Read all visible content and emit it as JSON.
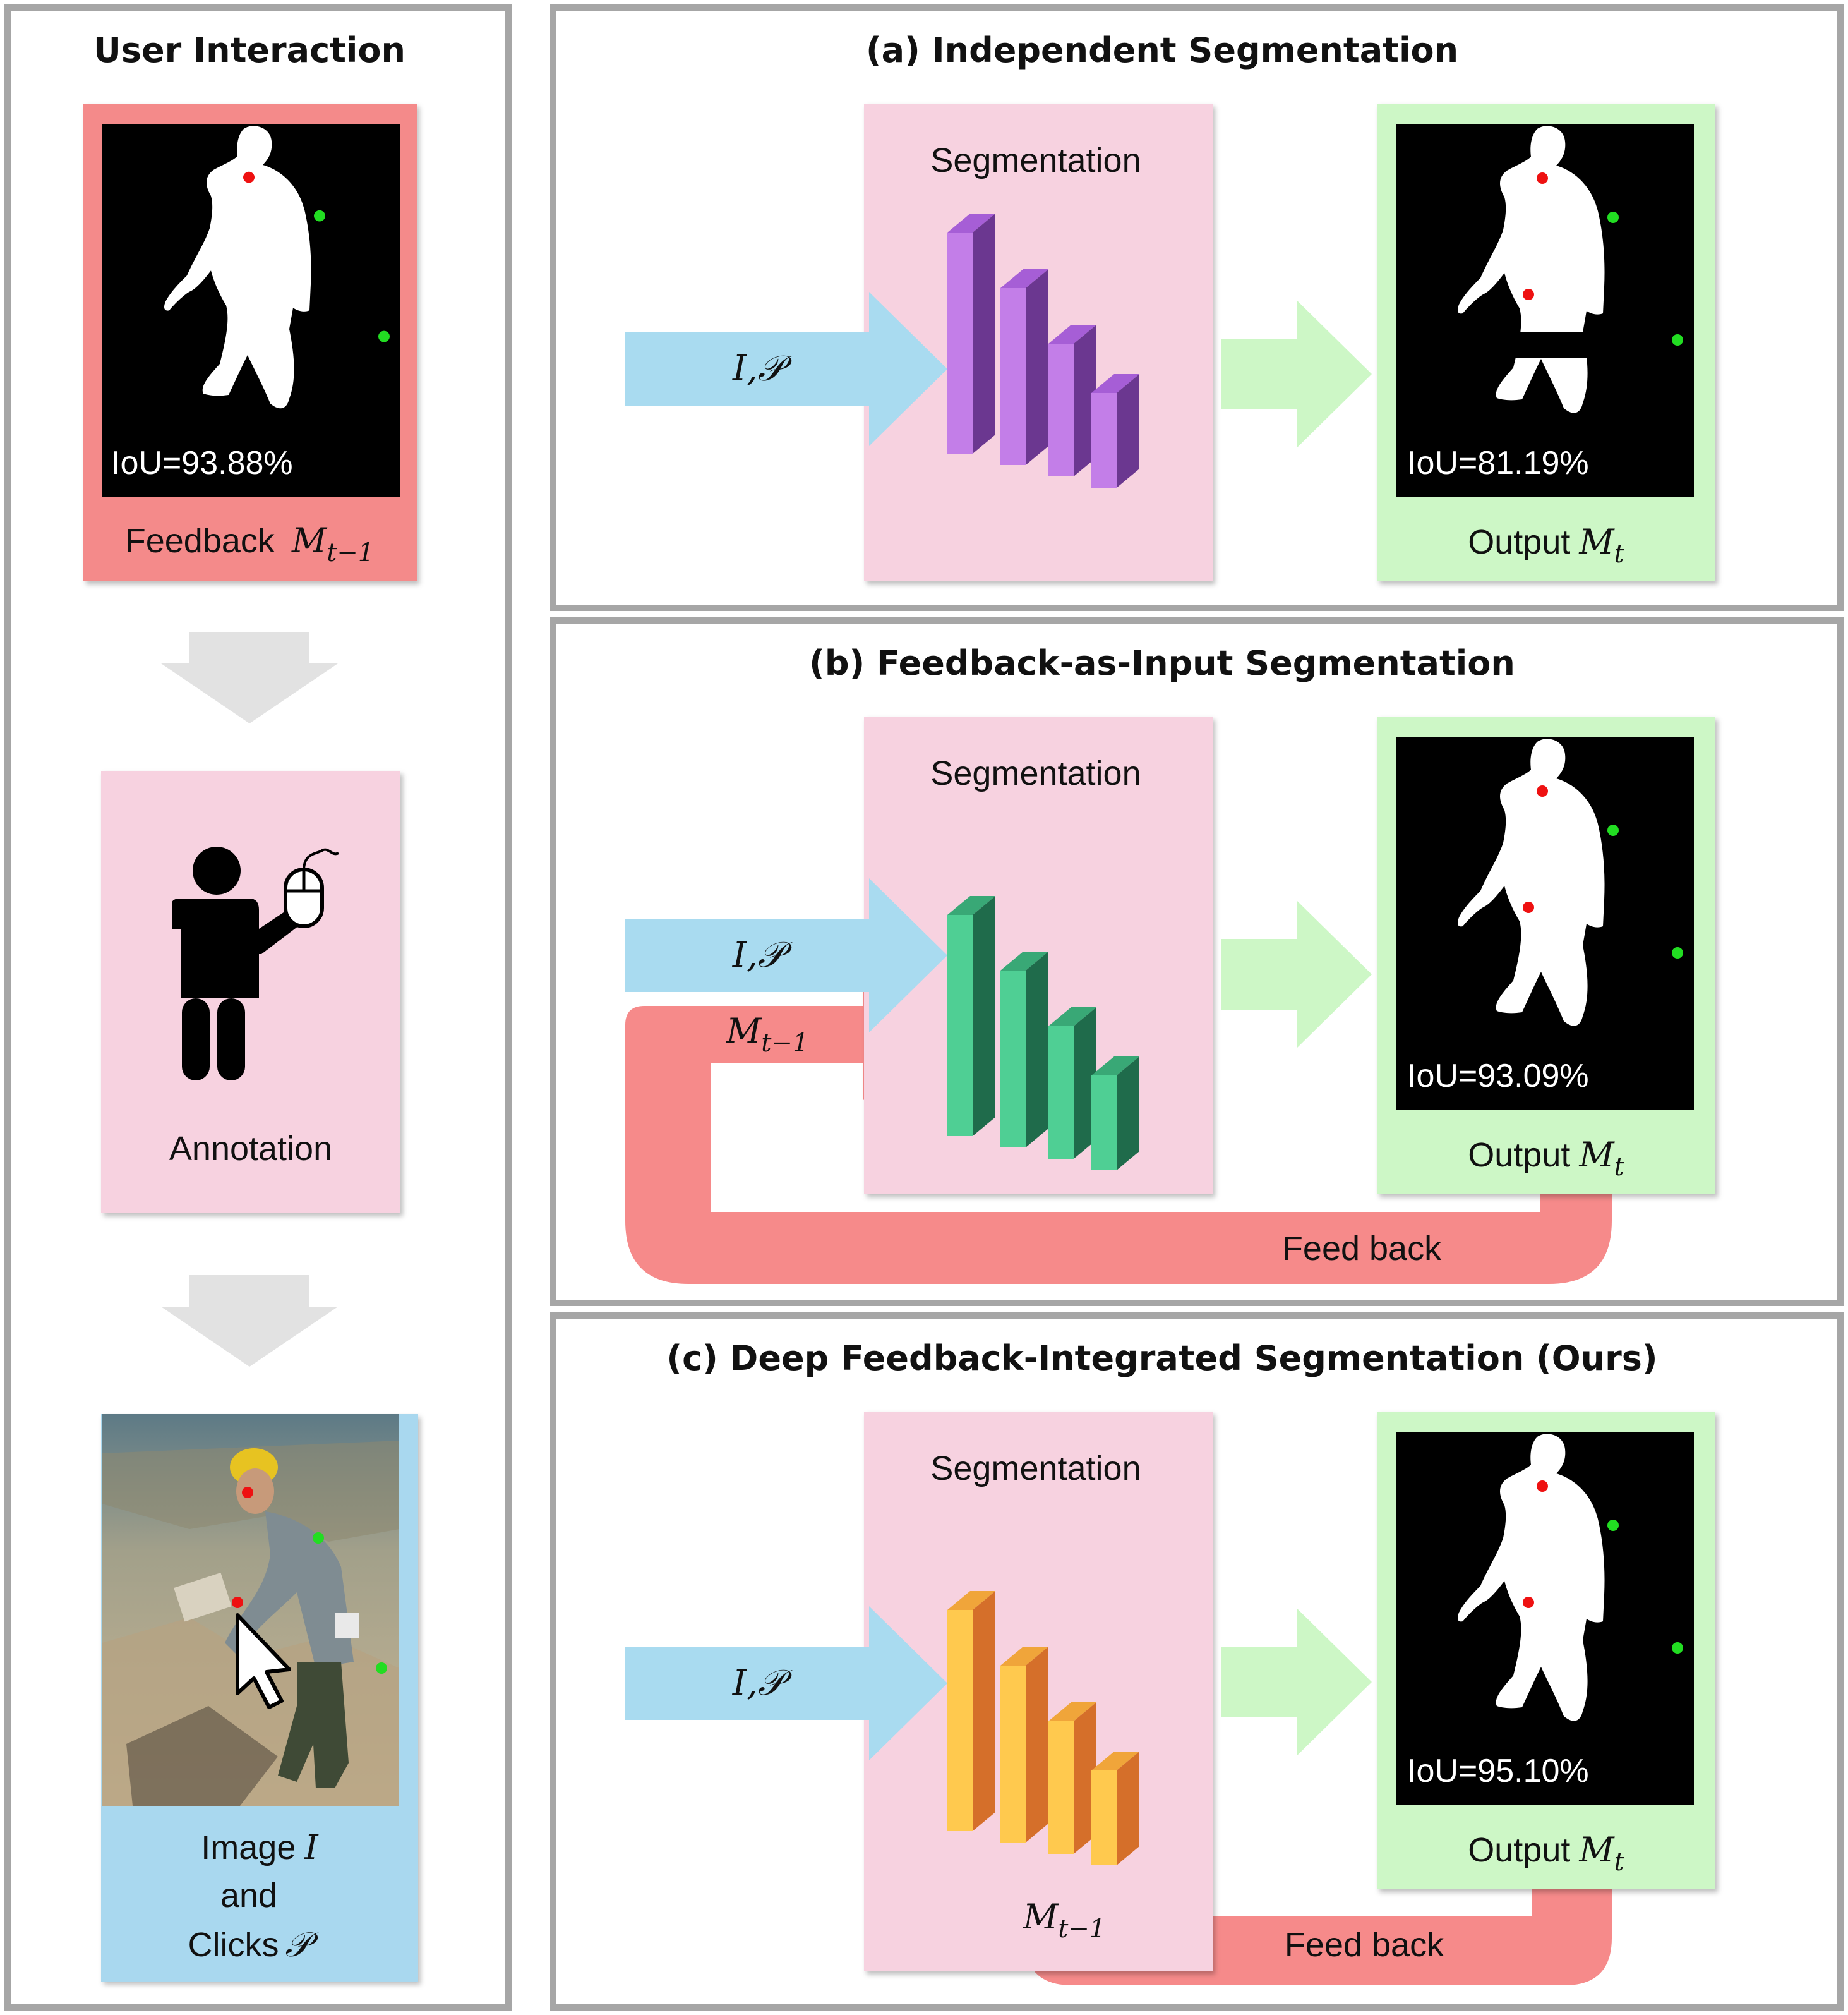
{
  "user_interaction": {
    "title": "User Interaction",
    "feedback": {
      "iou": "IoU=93.88%",
      "label": "Feedback",
      "symbol": "M",
      "subscript": "t−1"
    },
    "annotation": {
      "label": "Annotation"
    },
    "image": {
      "line1": "Image",
      "symbol_i": "I",
      "line2": "and",
      "line3": "Clicks",
      "symbol_p": "𝒫"
    }
  },
  "panels": [
    {
      "title": "(a) Independent Segmentation",
      "seg_label": "Segmentation",
      "input_label": "I,𝒫",
      "iou": "IoU=81.19%",
      "output_label": "Output",
      "output_symbol": "M",
      "output_sub": "t",
      "net_colors": {
        "front": "#6b3790",
        "side": "#c37ee8",
        "top": "#a65ed6"
      }
    },
    {
      "title": "(b) Feedback-as-Input Segmentation",
      "seg_label": "Segmentation",
      "input_label": "I,𝒫",
      "feedback_symbol": "M",
      "feedback_sub": "t−1",
      "feedback_text": "Feed back",
      "iou": "IoU=93.09%",
      "output_label": "Output",
      "output_symbol": "M",
      "output_sub": "t",
      "net_colors": {
        "front": "#1f6b4b",
        "side": "#4fcf94",
        "top": "#39a876"
      }
    },
    {
      "title": "(c) Deep Feedback-Integrated Segmentation (Ours)",
      "seg_label": "Segmentation",
      "input_label": "I,𝒫",
      "feedback_symbol": "M",
      "feedback_sub": "t−1",
      "feedback_text": "Feed back",
      "iou": "IoU=95.10%",
      "output_label": "Output",
      "output_symbol": "M",
      "output_sub": "t",
      "net_colors": {
        "front": "#d56f2a",
        "side": "#ffc94e",
        "top": "#f0a53a"
      }
    }
  ],
  "colors": {
    "frame": "#a6a6a6",
    "feedback_box": "#f48a8a",
    "seg_box": "#f7d2e0",
    "image_box": "#a9d8ef",
    "output_box": "#cdf7c6",
    "input_arrow": "#a9dbf0",
    "output_arrow": "#cdf7c6",
    "feedback_arrow": "#f68a8a",
    "gray_arrow": "#e2e2e2",
    "click_positive": "#22dd22",
    "click_negative": "#ee1111"
  }
}
